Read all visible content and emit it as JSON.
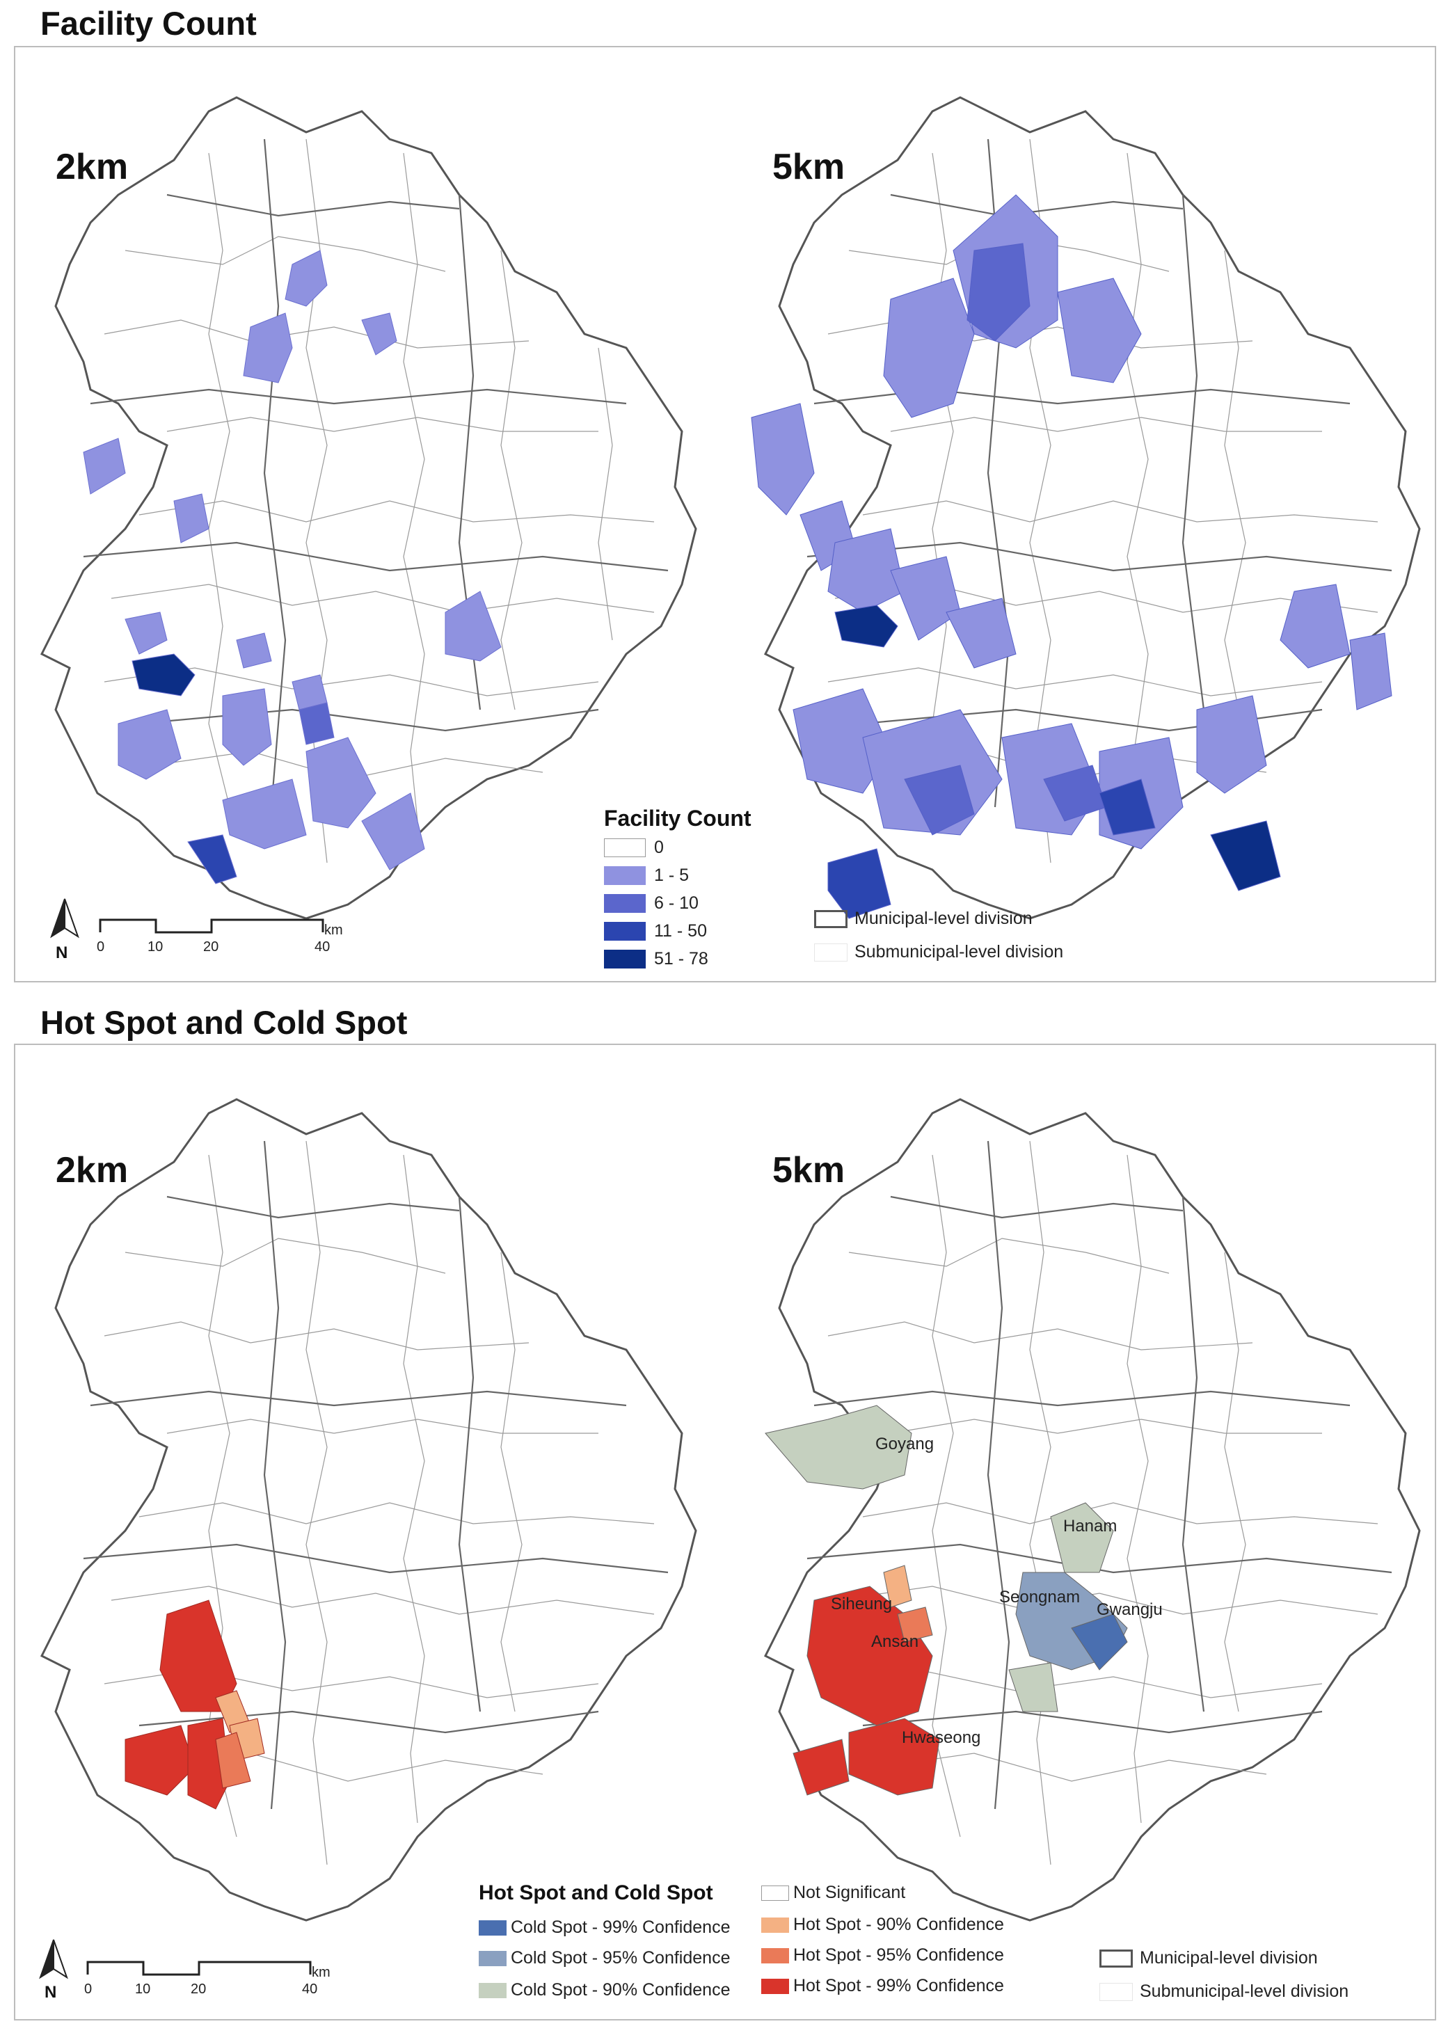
{
  "sections": {
    "facility_title": "Facility Count",
    "hotspot_title": "Hot Spot and Cold Spot"
  },
  "panels": {
    "fc_2km": "2km",
    "fc_5km": "5km",
    "hs_2km": "2km",
    "hs_5km": "5km"
  },
  "facility_legend": {
    "title": "Facility Count",
    "classes": [
      {
        "label": "0",
        "color": "#ffffff"
      },
      {
        "label": "1 - 5",
        "color": "#8f92e0"
      },
      {
        "label": "6 - 10",
        "color": "#5b66cc"
      },
      {
        "label": "11 - 50",
        "color": "#2b45b0"
      },
      {
        "label": "51 - 78",
        "color": "#0c2e86"
      }
    ]
  },
  "boundary_legend": {
    "municipal": "Municipal-level division",
    "submunicipal": "Submunicipal-level division"
  },
  "hotspot_legend": {
    "title": "Hot Spot and Cold Spot",
    "cold": [
      {
        "label": "Cold Spot - 99% Confidence",
        "color": "#4a6fb0"
      },
      {
        "label": "Cold Spot - 95% Confidence",
        "color": "#8aa0c0"
      },
      {
        "label": "Cold Spot - 90% Confidence",
        "color": "#c5d0bf"
      }
    ],
    "hot": [
      {
        "label": "Not Significant",
        "color": "#ffffff"
      },
      {
        "label": "Hot Spot - 90% Confidence",
        "color": "#f4b183"
      },
      {
        "label": "Hot Spot - 95% Confidence",
        "color": "#ea7a58"
      },
      {
        "label": "Hot Spot - 99% Confidence",
        "color": "#d9342b"
      }
    ]
  },
  "place_labels": {
    "goyang": "Goyang",
    "hanam": "Hanam",
    "siheung": "Siheung",
    "seongnam": "Seongnam",
    "gwangju": "Gwangju",
    "ansan": "Ansan",
    "hwaseong": "Hwaseong"
  },
  "scale_bar": {
    "unit": "km",
    "ticks": [
      "0",
      "10",
      "20",
      "40"
    ]
  },
  "north_arrow": {
    "letter": "N"
  }
}
